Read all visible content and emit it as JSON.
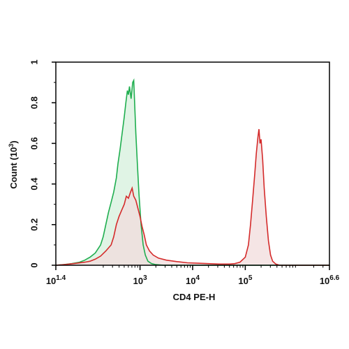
{
  "chart_data": {
    "type": "area",
    "xlabel": "CD4 PE-H",
    "ylabel": "Count (10",
    "ylabel_sup": "3",
    "ylabel_close": ")",
    "x_scale": "log10",
    "xlim": [
      1.4,
      6.6
    ],
    "ylim": [
      0,
      1
    ],
    "x_ticks": [
      {
        "base": "10",
        "exp": "1.4",
        "value": 1.4
      },
      {
        "base": "10",
        "exp": "3",
        "value": 3
      },
      {
        "base": "10",
        "exp": "4",
        "value": 4
      },
      {
        "base": "10",
        "exp": "5",
        "value": 5
      },
      {
        "base": "10",
        "exp": "6.6",
        "value": 6.6
      }
    ],
    "y_ticks": [
      "0",
      "0.2",
      "0.4",
      "0.6",
      "0.8",
      "1"
    ],
    "y_tick_values": [
      0,
      0.2,
      0.4,
      0.6,
      0.8,
      1
    ],
    "grid": false,
    "series": [
      {
        "color": "#1fae4f",
        "fill": "#d5f0dc",
        "points": [
          [
            1.4,
            0.0
          ],
          [
            1.55,
            0.003
          ],
          [
            1.7,
            0.008
          ],
          [
            1.85,
            0.015
          ],
          [
            1.95,
            0.025
          ],
          [
            2.05,
            0.04
          ],
          [
            2.15,
            0.06
          ],
          [
            2.25,
            0.1
          ],
          [
            2.3,
            0.14
          ],
          [
            2.35,
            0.2
          ],
          [
            2.4,
            0.26
          ],
          [
            2.45,
            0.31
          ],
          [
            2.5,
            0.36
          ],
          [
            2.55,
            0.43
          ],
          [
            2.58,
            0.5
          ],
          [
            2.62,
            0.57
          ],
          [
            2.66,
            0.65
          ],
          [
            2.7,
            0.73
          ],
          [
            2.73,
            0.8
          ],
          [
            2.76,
            0.86
          ],
          [
            2.78,
            0.84
          ],
          [
            2.8,
            0.88
          ],
          [
            2.83,
            0.82
          ],
          [
            2.86,
            0.9
          ],
          [
            2.88,
            0.91
          ],
          [
            2.9,
            0.78
          ],
          [
            2.92,
            0.65
          ],
          [
            2.95,
            0.5
          ],
          [
            2.98,
            0.35
          ],
          [
            3.02,
            0.2
          ],
          [
            3.06,
            0.1
          ],
          [
            3.1,
            0.05
          ],
          [
            3.15,
            0.02
          ],
          [
            3.22,
            0.008
          ],
          [
            3.3,
            0.003
          ],
          [
            3.45,
            0.0
          ],
          [
            6.6,
            0.0
          ]
        ]
      },
      {
        "color": "#d42a2a",
        "fill": "#f2dcdc",
        "points": [
          [
            1.4,
            0.0
          ],
          [
            1.6,
            0.004
          ],
          [
            1.8,
            0.01
          ],
          [
            1.95,
            0.015
          ],
          [
            2.05,
            0.02
          ],
          [
            2.15,
            0.03
          ],
          [
            2.25,
            0.045
          ],
          [
            2.35,
            0.07
          ],
          [
            2.45,
            0.1
          ],
          [
            2.5,
            0.14
          ],
          [
            2.55,
            0.2
          ],
          [
            2.6,
            0.24
          ],
          [
            2.65,
            0.27
          ],
          [
            2.7,
            0.3
          ],
          [
            2.74,
            0.34
          ],
          [
            2.78,
            0.33
          ],
          [
            2.82,
            0.36
          ],
          [
            2.85,
            0.38
          ],
          [
            2.88,
            0.34
          ],
          [
            2.92,
            0.32
          ],
          [
            2.96,
            0.28
          ],
          [
            3.0,
            0.24
          ],
          [
            3.04,
            0.19
          ],
          [
            3.08,
            0.15
          ],
          [
            3.12,
            0.1
          ],
          [
            3.18,
            0.07
          ],
          [
            3.25,
            0.05
          ],
          [
            3.35,
            0.035
          ],
          [
            3.5,
            0.025
          ],
          [
            3.7,
            0.018
          ],
          [
            3.9,
            0.012
          ],
          [
            4.1,
            0.01
          ],
          [
            4.3,
            0.008
          ],
          [
            4.5,
            0.006
          ],
          [
            4.7,
            0.006
          ],
          [
            4.8,
            0.008
          ],
          [
            4.9,
            0.015
          ],
          [
            5.0,
            0.04
          ],
          [
            5.06,
            0.1
          ],
          [
            5.1,
            0.2
          ],
          [
            5.14,
            0.32
          ],
          [
            5.18,
            0.45
          ],
          [
            5.21,
            0.55
          ],
          [
            5.24,
            0.63
          ],
          [
            5.26,
            0.67
          ],
          [
            5.28,
            0.6
          ],
          [
            5.3,
            0.62
          ],
          [
            5.33,
            0.52
          ],
          [
            5.36,
            0.38
          ],
          [
            5.4,
            0.24
          ],
          [
            5.44,
            0.12
          ],
          [
            5.48,
            0.05
          ],
          [
            5.52,
            0.02
          ],
          [
            5.58,
            0.006
          ],
          [
            5.65,
            0.0
          ],
          [
            6.6,
            0.0
          ]
        ]
      }
    ]
  }
}
